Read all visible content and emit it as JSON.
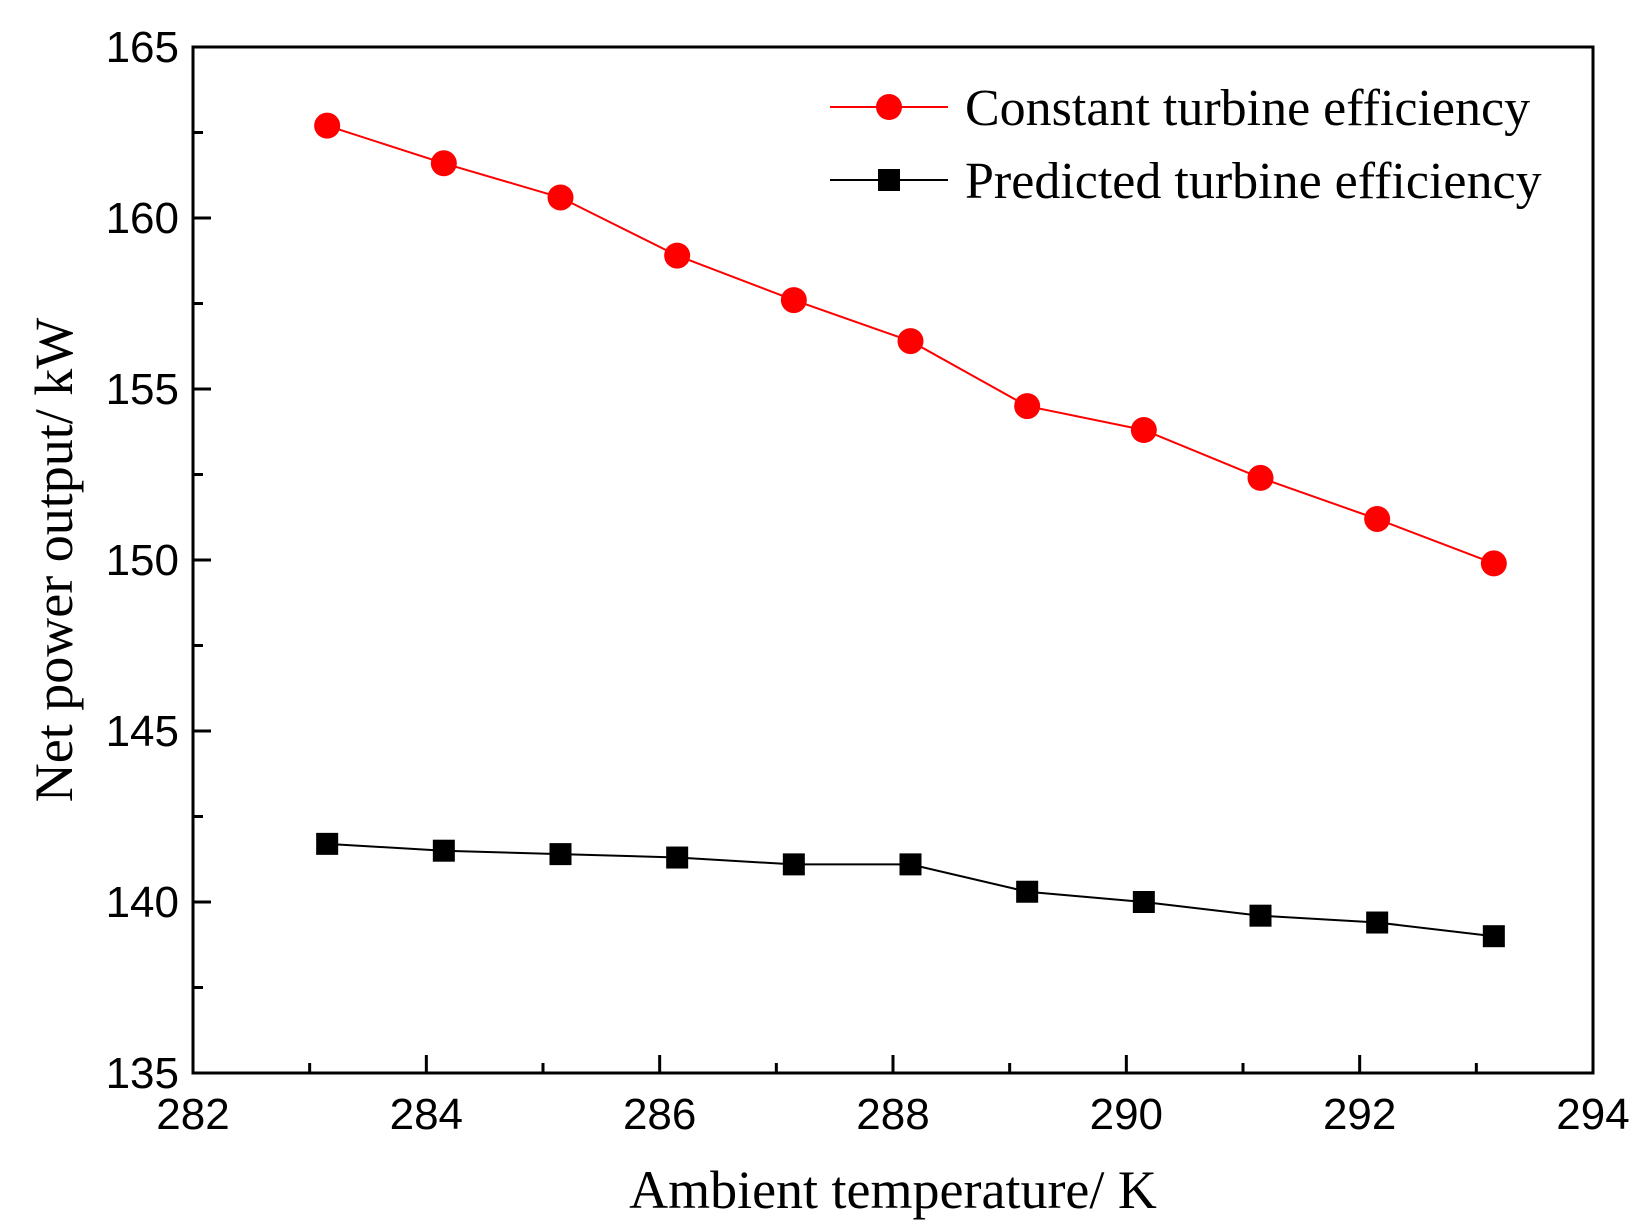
{
  "chart_data": {
    "type": "line",
    "title": "",
    "xlabel": "Ambient temperature/ K",
    "ylabel": "Net power output/ kW",
    "xlim": [
      282,
      294
    ],
    "ylim": [
      135,
      165
    ],
    "xticks": [
      282,
      284,
      286,
      288,
      290,
      292,
      294
    ],
    "yticks": [
      135,
      140,
      145,
      150,
      155,
      160,
      165
    ],
    "legend_position": "top-right",
    "x": [
      283.15,
      284.15,
      285.15,
      286.15,
      287.15,
      288.15,
      289.15,
      290.15,
      291.15,
      292.15,
      293.15
    ],
    "series": [
      {
        "name": "Constant turbine efficiency",
        "color": "#ff0000",
        "marker": "circle",
        "values": [
          162.7,
          161.6,
          160.6,
          158.9,
          157.6,
          156.4,
          154.5,
          153.8,
          152.4,
          151.2,
          149.9
        ]
      },
      {
        "name": "Predicted turbine efficiency",
        "color": "#000000",
        "marker": "square",
        "values": [
          141.7,
          141.5,
          141.4,
          141.3,
          141.1,
          141.1,
          140.3,
          140.0,
          139.6,
          139.4,
          139.0
        ]
      }
    ]
  }
}
